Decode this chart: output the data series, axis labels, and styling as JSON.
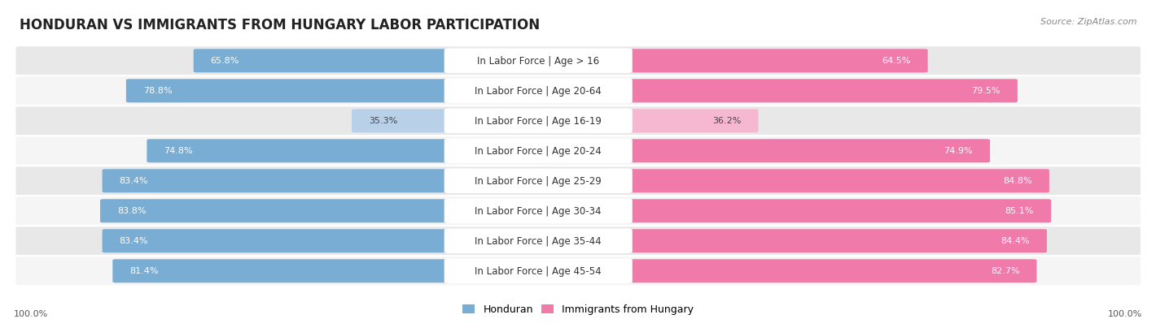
{
  "title": "HONDURAN VS IMMIGRANTS FROM HUNGARY LABOR PARTICIPATION",
  "source": "Source: ZipAtlas.com",
  "categories": [
    "In Labor Force | Age > 16",
    "In Labor Force | Age 20-64",
    "In Labor Force | Age 16-19",
    "In Labor Force | Age 20-24",
    "In Labor Force | Age 25-29",
    "In Labor Force | Age 30-34",
    "In Labor Force | Age 35-44",
    "In Labor Force | Age 45-54"
  ],
  "honduran": [
    65.8,
    78.8,
    35.3,
    74.8,
    83.4,
    83.8,
    83.4,
    81.4
  ],
  "hungary": [
    64.5,
    79.5,
    36.2,
    74.9,
    84.8,
    85.1,
    84.4,
    82.7
  ],
  "honduran_color": "#7aadd4",
  "honduran_light_color": "#b8d0e8",
  "hungary_color": "#f07aaa",
  "hungary_light_color": "#f5b8d0",
  "row_bg_dark": "#e8e8e8",
  "row_bg_light": "#f5f5f5",
  "label_bg": "#ffffff",
  "max_value": 100.0,
  "legend_honduran": "Honduran",
  "legend_hungary": "Immigrants from Hungary",
  "bottom_left_label": "100.0%",
  "bottom_right_label": "100.0%",
  "title_fontsize": 12,
  "source_fontsize": 8,
  "label_fontsize": 8.5,
  "value_fontsize": 8.0
}
